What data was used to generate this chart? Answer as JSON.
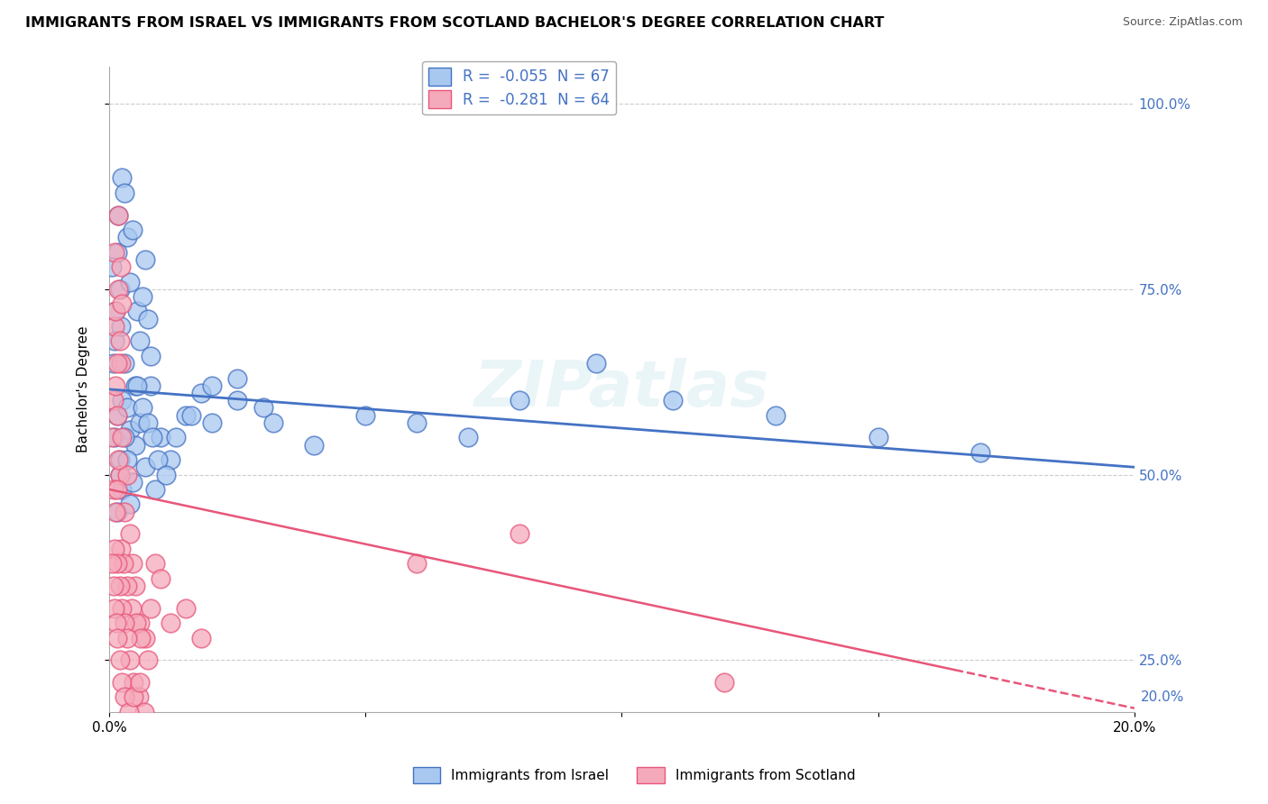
{
  "title": "IMMIGRANTS FROM ISRAEL VS IMMIGRANTS FROM SCOTLAND BACHELOR'S DEGREE CORRELATION CHART",
  "source": "Source: ZipAtlas.com",
  "ylabel": "Bachelor's Degree",
  "legend_label1": "Immigrants from Israel",
  "legend_label2": "Immigrants from Scotland",
  "R1": -0.055,
  "N1": 67,
  "R2": -0.281,
  "N2": 64,
  "xlim": [
    0.0,
    0.2
  ],
  "ylim": [
    0.18,
    1.05
  ],
  "yticks": [
    0.25,
    0.5,
    0.75,
    1.0
  ],
  "ytick_labels": [
    "25.0%",
    "50.0%",
    "75.0%",
    "100.0%"
  ],
  "xtick_labels": [
    "0.0%",
    "",
    "",
    "",
    "20.0%"
  ],
  "color_israel": "#A8C8F0",
  "color_scotland": "#F5AABB",
  "line_color_israel": "#4472C4",
  "line_color_scotland": "#E8567A",
  "background_color": "#FFFFFF",
  "watermark": "ZIPatlas",
  "israel_x": [
    0.001,
    0.0012,
    0.0015,
    0.0018,
    0.002,
    0.0022,
    0.0025,
    0.0008,
    0.0005,
    0.003,
    0.0035,
    0.004,
    0.0045,
    0.005,
    0.0055,
    0.006,
    0.0065,
    0.007,
    0.0075,
    0.008,
    0.001,
    0.0015,
    0.002,
    0.0025,
    0.003,
    0.0035,
    0.004,
    0.005,
    0.006,
    0.007,
    0.008,
    0.009,
    0.01,
    0.012,
    0.015,
    0.018,
    0.02,
    0.025,
    0.03,
    0.04,
    0.05,
    0.06,
    0.07,
    0.08,
    0.095,
    0.11,
    0.13,
    0.15,
    0.17,
    0.0015,
    0.002,
    0.0025,
    0.003,
    0.0035,
    0.004,
    0.0045,
    0.0055,
    0.0065,
    0.0075,
    0.0085,
    0.0095,
    0.011,
    0.013,
    0.016,
    0.02,
    0.025,
    0.032
  ],
  "israel_y": [
    0.68,
    0.72,
    0.8,
    0.85,
    0.75,
    0.7,
    0.9,
    0.65,
    0.78,
    0.88,
    0.82,
    0.76,
    0.83,
    0.62,
    0.72,
    0.68,
    0.74,
    0.79,
    0.71,
    0.66,
    0.55,
    0.58,
    0.52,
    0.6,
    0.65,
    0.59,
    0.56,
    0.54,
    0.57,
    0.51,
    0.62,
    0.48,
    0.55,
    0.52,
    0.58,
    0.61,
    0.57,
    0.63,
    0.59,
    0.54,
    0.58,
    0.57,
    0.55,
    0.6,
    0.65,
    0.6,
    0.58,
    0.55,
    0.53,
    0.45,
    0.5,
    0.48,
    0.55,
    0.52,
    0.46,
    0.49,
    0.62,
    0.59,
    0.57,
    0.55,
    0.52,
    0.5,
    0.55,
    0.58,
    0.62,
    0.6,
    0.57
  ],
  "scotland_x": [
    0.0005,
    0.0008,
    0.001,
    0.0012,
    0.0015,
    0.0018,
    0.002,
    0.0022,
    0.0025,
    0.0008,
    0.001,
    0.0012,
    0.0015,
    0.0018,
    0.002,
    0.0022,
    0.0025,
    0.003,
    0.0035,
    0.004,
    0.0045,
    0.005,
    0.006,
    0.007,
    0.008,
    0.009,
    0.01,
    0.012,
    0.015,
    0.018,
    0.0012,
    0.0015,
    0.0018,
    0.0022,
    0.0028,
    0.0035,
    0.0043,
    0.0052,
    0.0062,
    0.0075,
    0.001,
    0.0015,
    0.002,
    0.0025,
    0.003,
    0.0035,
    0.004,
    0.0048,
    0.0058,
    0.0068,
    0.0005,
    0.0008,
    0.001,
    0.0013,
    0.0016,
    0.002,
    0.0024,
    0.003,
    0.0038,
    0.0048,
    0.006,
    0.06,
    0.08,
    0.12
  ],
  "scotland_y": [
    0.55,
    0.6,
    0.7,
    0.62,
    0.58,
    0.75,
    0.5,
    0.65,
    0.55,
    0.48,
    0.8,
    0.72,
    0.65,
    0.85,
    0.68,
    0.78,
    0.73,
    0.45,
    0.5,
    0.42,
    0.38,
    0.35,
    0.3,
    0.28,
    0.32,
    0.38,
    0.36,
    0.3,
    0.32,
    0.28,
    0.45,
    0.48,
    0.52,
    0.4,
    0.38,
    0.35,
    0.32,
    0.3,
    0.28,
    0.25,
    0.4,
    0.38,
    0.35,
    0.32,
    0.3,
    0.28,
    0.25,
    0.22,
    0.2,
    0.18,
    0.38,
    0.35,
    0.32,
    0.3,
    0.28,
    0.25,
    0.22,
    0.2,
    0.18,
    0.2,
    0.22,
    0.38,
    0.42,
    0.22
  ],
  "israel_line_x0": 0.0,
  "israel_line_y0": 0.615,
  "israel_line_x1": 0.2,
  "israel_line_y1": 0.51,
  "scotland_line_x0": 0.0,
  "scotland_line_y0": 0.48,
  "scotland_line_x1": 0.2,
  "scotland_line_y1": 0.185
}
